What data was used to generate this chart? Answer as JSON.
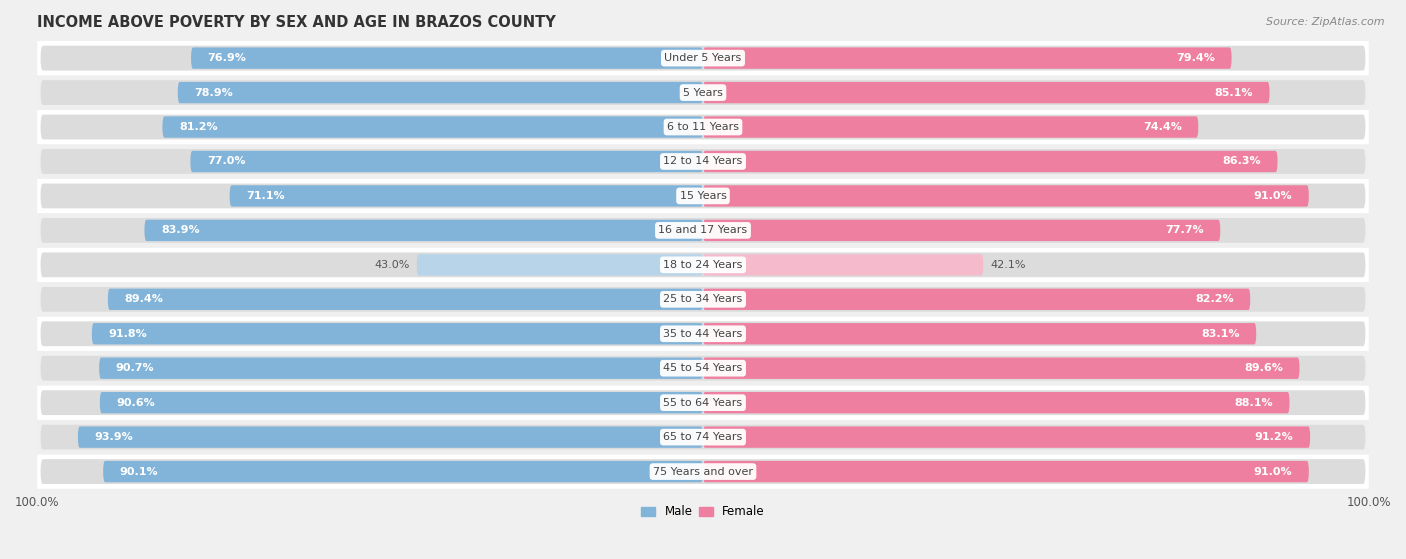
{
  "title": "INCOME ABOVE POVERTY BY SEX AND AGE IN BRAZOS COUNTY",
  "source": "Source: ZipAtlas.com",
  "categories": [
    "Under 5 Years",
    "5 Years",
    "6 to 11 Years",
    "12 to 14 Years",
    "15 Years",
    "16 and 17 Years",
    "18 to 24 Years",
    "25 to 34 Years",
    "35 to 44 Years",
    "45 to 54 Years",
    "55 to 64 Years",
    "65 to 74 Years",
    "75 Years and over"
  ],
  "male_values": [
    76.9,
    78.9,
    81.2,
    77.0,
    71.1,
    83.9,
    43.0,
    89.4,
    91.8,
    90.7,
    90.6,
    93.9,
    90.1
  ],
  "female_values": [
    79.4,
    85.1,
    74.4,
    86.3,
    91.0,
    77.7,
    42.1,
    82.2,
    83.1,
    89.6,
    88.1,
    91.2,
    91.0
  ],
  "male_color": "#82B4D9",
  "female_color": "#EE7FA0",
  "male_color_light": "#B8D4E8",
  "female_color_light": "#F5BBCC",
  "track_color": "#DCDCDC",
  "row_bg_white": "#FFFFFF",
  "row_bg_gray": "#EFEFEF",
  "male_label": "Male",
  "female_label": "Female",
  "max_val": 100.0,
  "background_color": "#F0F0F0",
  "title_fontsize": 10.5,
  "label_fontsize": 8.0,
  "value_fontsize": 8.0,
  "tick_fontsize": 8.5,
  "source_fontsize": 8
}
